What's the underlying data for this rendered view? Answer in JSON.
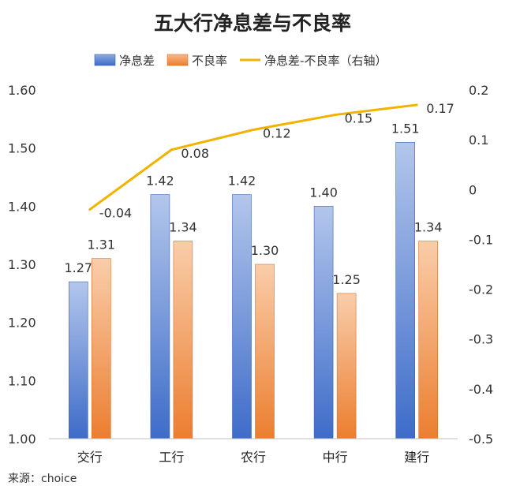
{
  "chart_data": {
    "type": "bar",
    "title": "五大行净息差与不良率",
    "source": "来源：choice",
    "categories": [
      "交行",
      "工行",
      "农行",
      "中行",
      "建行"
    ],
    "series": [
      {
        "name": "净息差",
        "type": "bar",
        "axis": "left",
        "values": [
          1.27,
          1.42,
          1.42,
          1.4,
          1.51
        ],
        "labels": [
          "1.27",
          "1.42",
          "1.42",
          "1.40",
          "1.51"
        ],
        "color": "#4472C4"
      },
      {
        "name": "不良率",
        "type": "bar",
        "axis": "left",
        "values": [
          1.31,
          1.34,
          1.3,
          1.25,
          1.34
        ],
        "labels": [
          "1.31",
          "1.34",
          "1.30",
          "1.25",
          "1.34"
        ],
        "color": "#ED7D31"
      },
      {
        "name": "净息差-不良率（右轴）",
        "type": "line",
        "axis": "right",
        "values": [
          -0.04,
          0.08,
          0.12,
          0.15,
          0.17
        ],
        "labels": [
          "-0.04",
          "0.08",
          "0.12",
          "0.15",
          "0.17"
        ],
        "color": "#F0B400"
      }
    ],
    "y_left": {
      "min": 1.0,
      "max": 1.6,
      "ticks": [
        "1.00",
        "1.10",
        "1.20",
        "1.30",
        "1.40",
        "1.50",
        "1.60"
      ]
    },
    "y_right": {
      "min": -0.5,
      "max": 0.2,
      "ticks": [
        "-0.5",
        "-0.4",
        "-0.3",
        "-0.2",
        "-0.1",
        "0",
        "0.1",
        "0.2"
      ]
    },
    "legend_position": "top-center",
    "negative_label_color": "#D9262B",
    "grid": false
  }
}
